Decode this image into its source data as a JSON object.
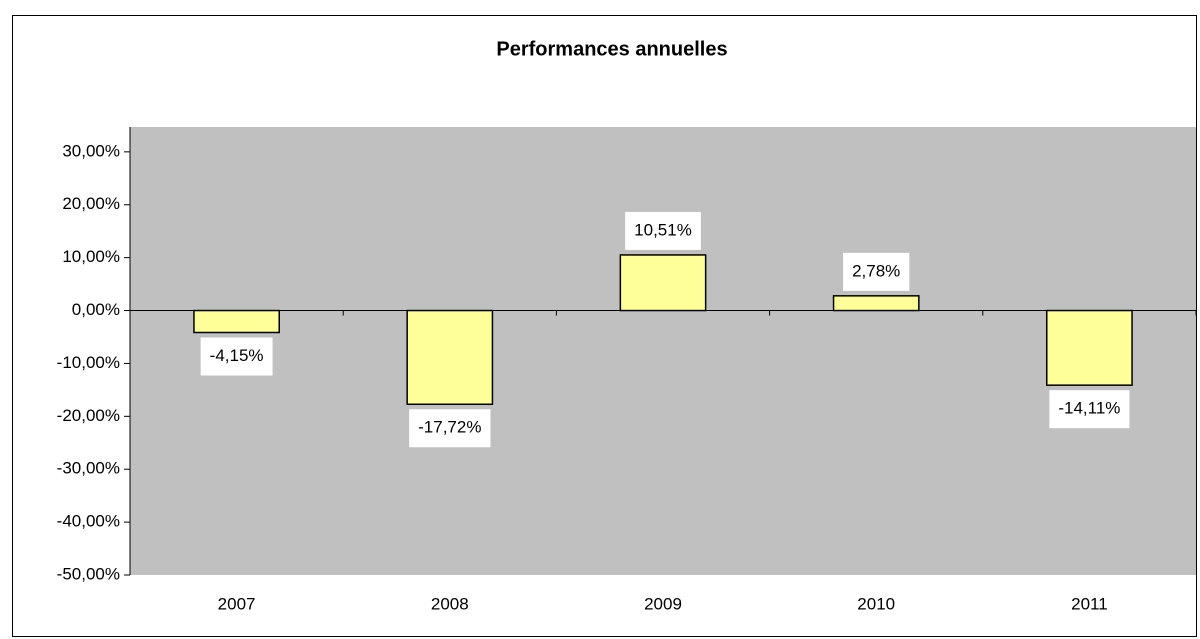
{
  "chart_data": {
    "type": "bar",
    "title": "Performances annuelles",
    "categories": [
      "2007",
      "2008",
      "2009",
      "2010",
      "2011"
    ],
    "values": [
      -4.15,
      -17.72,
      10.51,
      2.78,
      -14.11
    ],
    "value_labels": [
      "-4,15%",
      "-17,72%",
      "10,51%",
      "2,78%",
      "-14,11%"
    ],
    "color": "#ffff99",
    "ylim": [
      -50,
      34.7
    ],
    "yticks": [
      {
        "value": -50,
        "label": "-50,00%"
      },
      {
        "value": -40,
        "label": "-40,00%"
      },
      {
        "value": -30,
        "label": "-30,00%"
      },
      {
        "value": -20,
        "label": "-20,00%"
      },
      {
        "value": -10,
        "label": "-10,00%"
      },
      {
        "value": 0,
        "label": "0,00%"
      },
      {
        "value": 10,
        "label": "10,00%"
      },
      {
        "value": 20,
        "label": "20,00%"
      },
      {
        "value": 30,
        "label": "30,00%"
      }
    ],
    "plot_background": "#c0c0c0"
  }
}
